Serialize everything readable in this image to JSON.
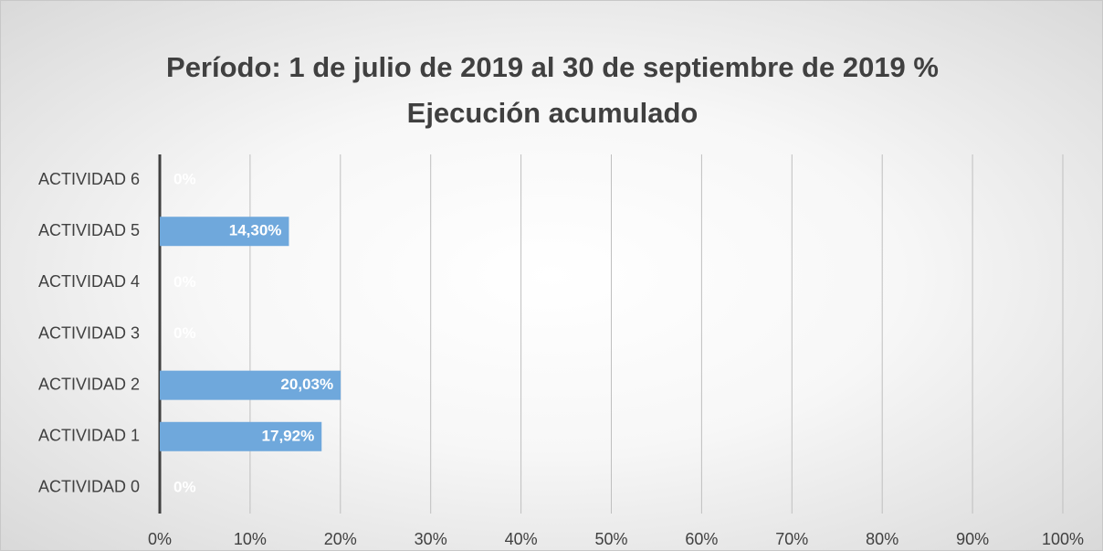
{
  "chart_data": {
    "type": "bar",
    "orientation": "horizontal",
    "title": "Período: 1 de julio de 2019 al 30 de septiembre de 2019 % Ejecución acumulado",
    "categories": [
      "ACTIVIDAD 0",
      "ACTIVIDAD 1",
      "ACTIVIDAD 2",
      "ACTIVIDAD 3",
      "ACTIVIDAD 4",
      "ACTIVIDAD 5",
      "ACTIVIDAD 6"
    ],
    "values": [
      0,
      17.92,
      20.03,
      0,
      0,
      14.3,
      0
    ],
    "value_labels": [
      "0%",
      "17,92%",
      "20,03%",
      "0%",
      "0%",
      "14,30%",
      "0%"
    ],
    "color": "#6fa8dc",
    "xlim": [
      0,
      100
    ],
    "xticks": [
      {
        "value": 0,
        "label": "0%"
      },
      {
        "value": 10,
        "label": "10%"
      },
      {
        "value": 20,
        "label": "20%"
      },
      {
        "value": 30,
        "label": "30%"
      },
      {
        "value": 40,
        "label": "40%"
      },
      {
        "value": 50,
        "label": "50%"
      },
      {
        "value": 60,
        "label": "60%"
      },
      {
        "value": 70,
        "label": "70%"
      },
      {
        "value": 80,
        "label": "80%"
      },
      {
        "value": 90,
        "label": "90%"
      },
      {
        "value": 100,
        "label": "100%"
      }
    ],
    "grid": true
  }
}
